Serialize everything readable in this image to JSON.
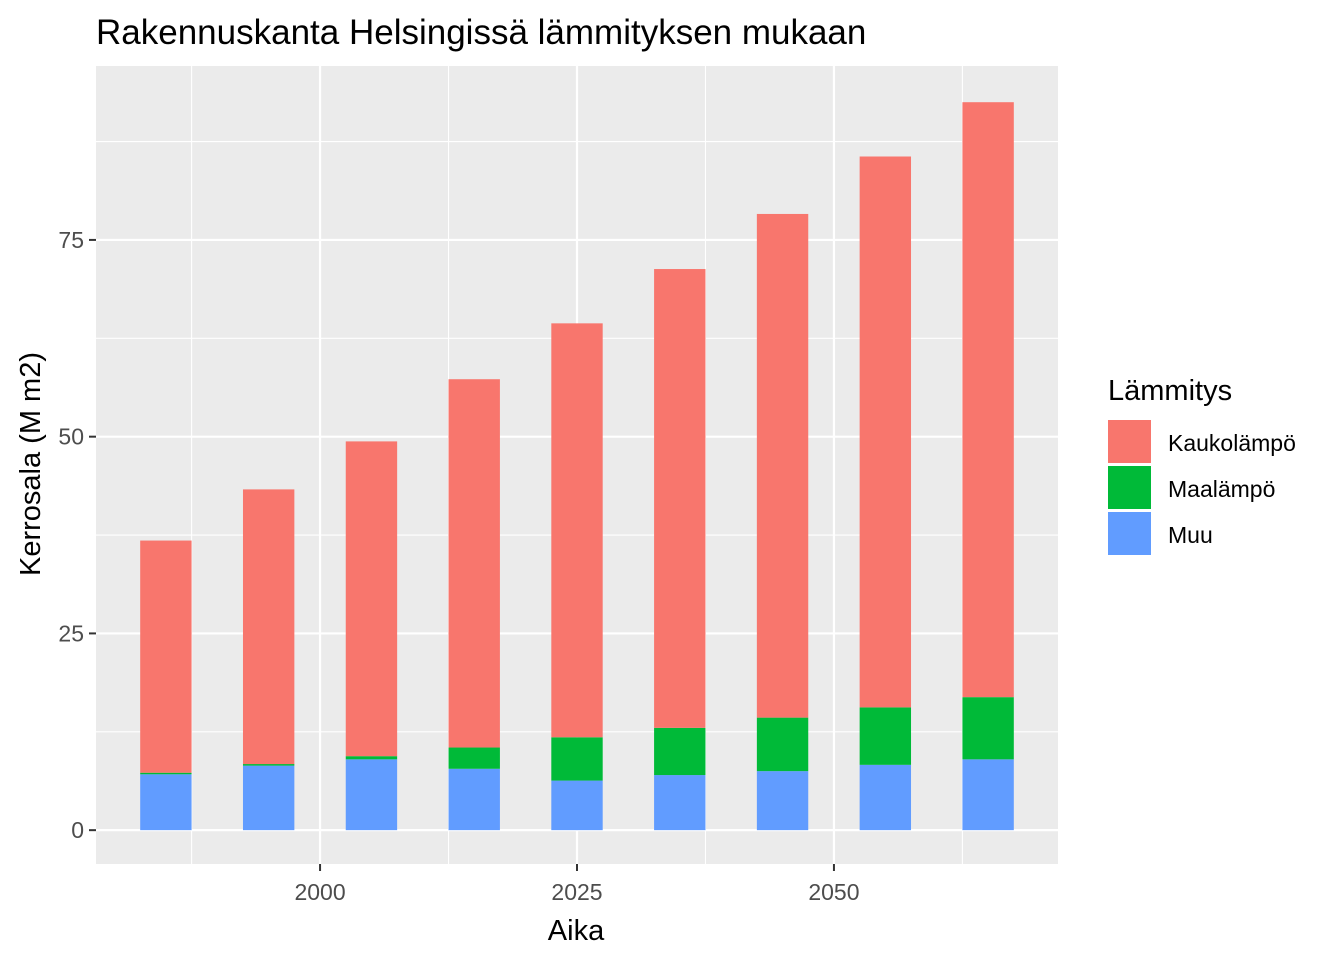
{
  "chart_data": {
    "type": "bar",
    "stacked": true,
    "title": "Rakennuskanta Helsingissä lämmityksen mukaan",
    "xlabel": "Aika",
    "ylabel": "Kerrosala (M m2)",
    "x": [
      1985,
      1995,
      2005,
      2015,
      2025,
      2035,
      2045,
      2055,
      2065
    ],
    "x_ticks": [
      "2000",
      "2025",
      "2050"
    ],
    "x_tick_values": [
      2000,
      2025,
      2050
    ],
    "xlim": [
      1978.2,
      2071.8
    ],
    "y_ticks": [
      "0",
      "25",
      "50",
      "75"
    ],
    "y_tick_values": [
      0,
      25,
      50,
      75
    ],
    "ylim": [
      -4.3,
      97.1
    ],
    "bar_width_years": 5,
    "grid": true,
    "legend": {
      "title": "Lämmitys",
      "position": "right",
      "entries": [
        "Kaukolämpö",
        "Maalämpö",
        "Muu"
      ]
    },
    "series": [
      {
        "name": "Muu",
        "color": "#619CFF",
        "values": [
          7.1,
          8.2,
          9.0,
          7.8,
          6.3,
          7.0,
          7.5,
          8.3,
          9.0
        ]
      },
      {
        "name": "Maalämpö",
        "color": "#00BA38",
        "values": [
          0.2,
          0.2,
          0.4,
          2.7,
          5.5,
          6.0,
          6.8,
          7.3,
          7.9
        ]
      },
      {
        "name": "Kaukolämpö",
        "color": "#F8766D",
        "values": [
          29.5,
          34.9,
          40.0,
          46.8,
          52.6,
          58.3,
          64.0,
          70.0,
          75.6
        ]
      }
    ]
  }
}
